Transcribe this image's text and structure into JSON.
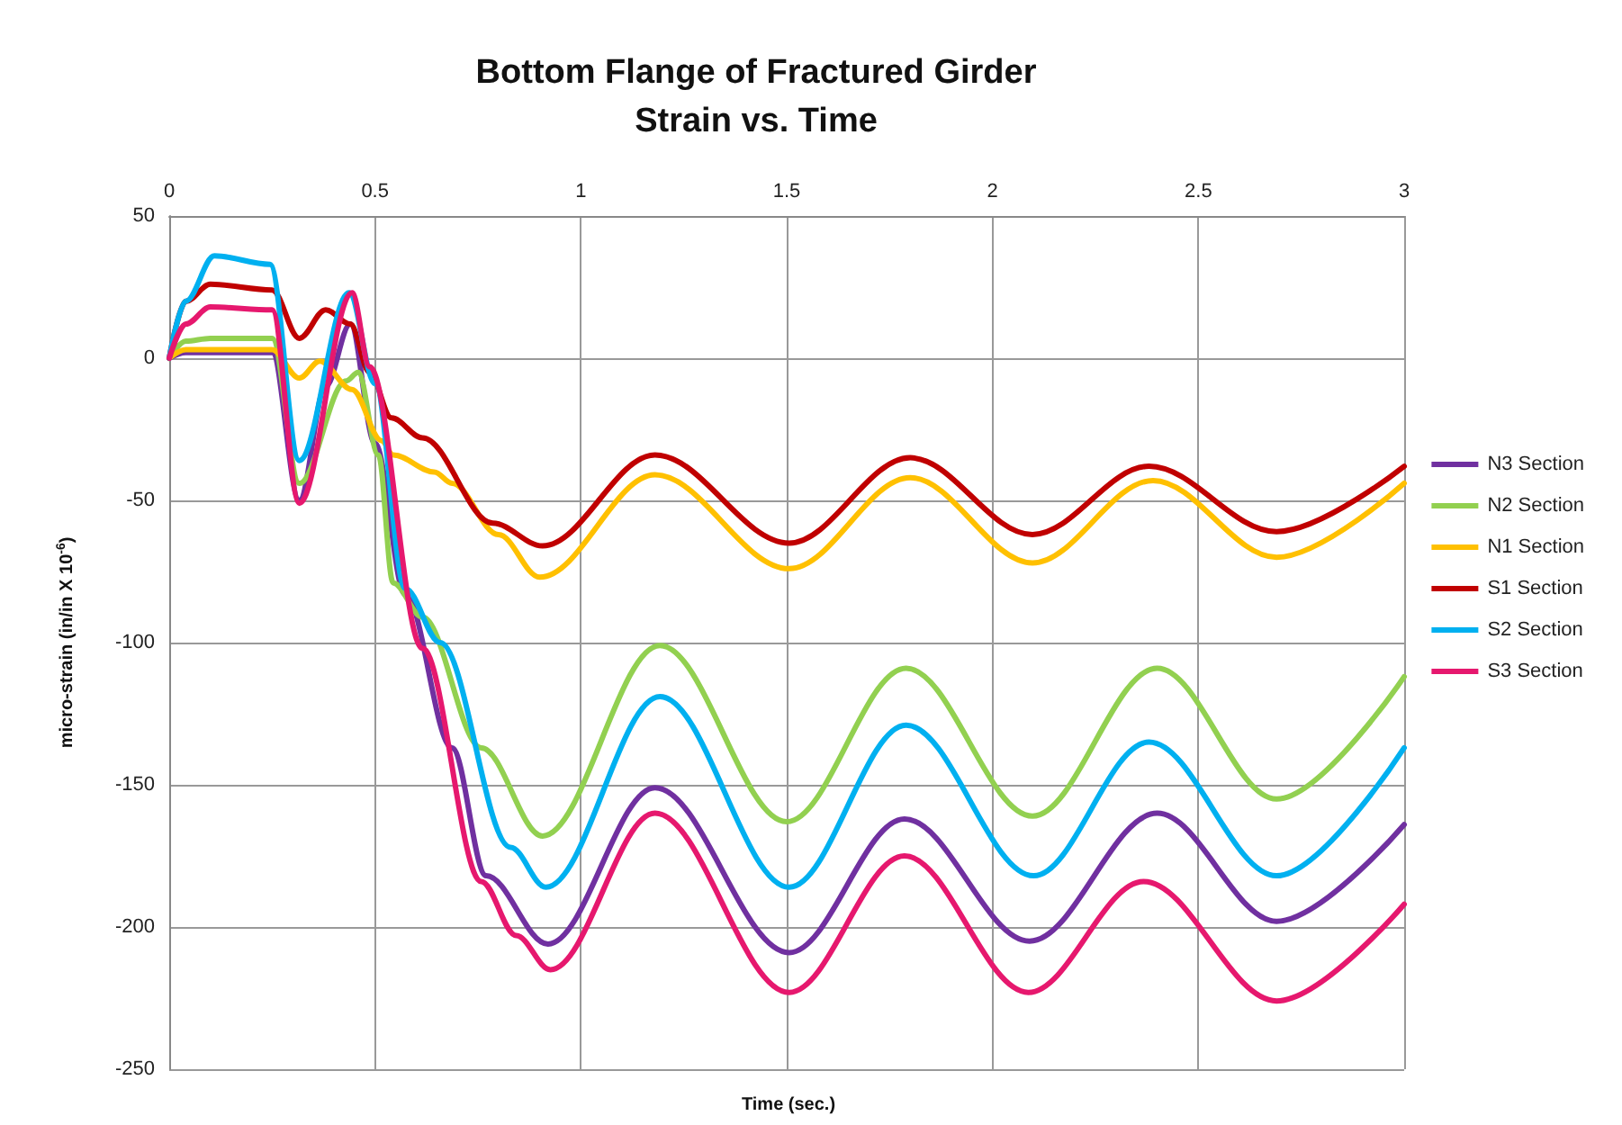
{
  "chart_data": {
    "type": "line",
    "title": "Bottom Flange of Fractured Girder",
    "subtitle": "Strain vs. Time",
    "xlabel": "Time (sec.)",
    "ylabel": "micro-strain (in/in X 10$^{-6}$)",
    "xlim": [
      0,
      3
    ],
    "xticks": [
      0,
      0.5,
      1,
      1.5,
      2,
      2.5,
      3
    ],
    "ylim": [
      -250,
      50
    ],
    "yticks": [
      -250,
      -200,
      -150,
      -100,
      -50,
      0,
      50
    ],
    "grid": true,
    "legend": "right",
    "marker": "none",
    "line_style": "solid",
    "series": [
      {
        "name": "N3 Section",
        "color": "#7030a0",
        "x": [
          0,
          0.04,
          0.1,
          0.25,
          0.316,
          0.38,
          0.44,
          0.5,
          0.573,
          0.687,
          0.77,
          0.92,
          1.18,
          1.506,
          1.786,
          2.09,
          2.4,
          2.69,
          3.0
        ],
        "values": [
          0,
          2,
          2,
          2,
          -50,
          -10,
          12,
          -30,
          -83,
          -137,
          -182,
          -206,
          -151,
          -209,
          -162,
          -205,
          -160,
          -198,
          -164
        ]
      },
      {
        "name": "N2 Section",
        "color": "#92d050",
        "x": [
          0,
          0.04,
          0.1,
          0.25,
          0.316,
          0.43,
          0.459,
          0.508,
          0.544,
          0.615,
          0.758,
          0.907,
          1.192,
          1.5,
          1.79,
          2.097,
          2.4,
          2.69,
          3.0
        ],
        "values": [
          0,
          6,
          7,
          7,
          -44,
          -8,
          -5,
          -34,
          -79,
          -91,
          -137,
          -168,
          -101,
          -163,
          -109,
          -161,
          -109,
          -155,
          -112
        ]
      },
      {
        "name": "N1 Section",
        "color": "#ffc000",
        "x": [
          0,
          0.04,
          0.1,
          0.25,
          0.316,
          0.366,
          0.444,
          0.516,
          0.544,
          0.644,
          0.687,
          0.8,
          0.9,
          1.18,
          1.506,
          1.8,
          2.097,
          2.39,
          2.69,
          3.0
        ],
        "values": [
          0,
          3,
          3,
          3,
          -7,
          -1,
          -11,
          -29,
          -34,
          -40,
          -44,
          -62,
          -77,
          -41,
          -74,
          -42,
          -72,
          -43,
          -70,
          -44
        ]
      },
      {
        "name": "S1 Section",
        "color": "#c00000",
        "x": [
          0,
          0.04,
          0.1,
          0.25,
          0.316,
          0.38,
          0.44,
          0.487,
          0.54,
          0.615,
          0.786,
          0.907,
          1.18,
          1.506,
          1.8,
          2.097,
          2.38,
          2.69,
          3.0
        ],
        "values": [
          0,
          20,
          26,
          24,
          7,
          17,
          12,
          -5,
          -21,
          -28,
          -58,
          -66,
          -34,
          -65,
          -35,
          -62,
          -38,
          -61,
          -38
        ]
      },
      {
        "name": "S2 Section",
        "color": "#00b0f0",
        "x": [
          0,
          0.04,
          0.11,
          0.245,
          0.316,
          0.437,
          0.5,
          0.573,
          0.658,
          0.829,
          0.915,
          1.192,
          1.506,
          1.79,
          2.1,
          2.38,
          2.69,
          3.0
        ],
        "values": [
          0,
          20,
          36,
          33,
          -36,
          23,
          -9,
          -81,
          -100,
          -172,
          -186,
          -119,
          -186,
          -129,
          -182,
          -135,
          -182,
          -137
        ]
      },
      {
        "name": "S3 Section",
        "color": "#e6186e",
        "x": [
          0,
          0.04,
          0.1,
          0.25,
          0.316,
          0.444,
          0.487,
          0.615,
          0.758,
          0.843,
          0.926,
          1.18,
          1.506,
          1.786,
          2.087,
          2.367,
          2.69,
          3.0
        ],
        "values": [
          0,
          12,
          18,
          17,
          -51,
          23,
          -3,
          -102,
          -184,
          -203,
          -215,
          -160,
          -223,
          -175,
          -223,
          -184,
          -226,
          -192
        ]
      }
    ]
  }
}
